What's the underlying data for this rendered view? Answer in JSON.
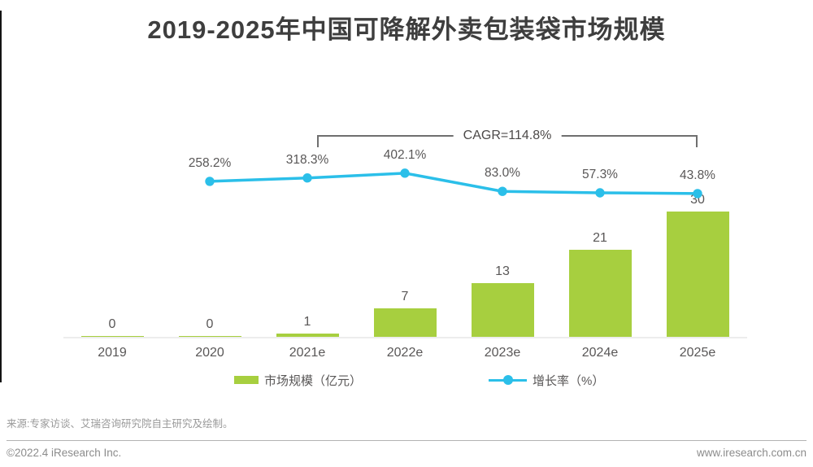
{
  "page": {
    "title": "2019-2025年中国可降解外卖包装袋市场规模",
    "source_note": "来源:专家访谈、艾瑞咨询研究院自主研究及绘制。",
    "footer_left": "©2022.4 iResearch Inc.",
    "footer_right": "www.iresearch.com.cn"
  },
  "chart_data": {
    "type": "bar",
    "title": "2019-2025年中国可降解外卖包装袋市场规模",
    "categories": [
      "2019",
      "2020",
      "2021e",
      "2022e",
      "2023e",
      "2024e",
      "2025e"
    ],
    "series": [
      {
        "name": "市场规模（亿元）",
        "type": "bar",
        "values": [
          0,
          0,
          1,
          7,
          13,
          21,
          30
        ],
        "labels": [
          "0",
          "0",
          "1",
          "7",
          "13",
          "21",
          "30"
        ],
        "color": "#a7cf3f"
      },
      {
        "name": "增长率（%）",
        "type": "line",
        "values": [
          null,
          258.2,
          318.3,
          402.1,
          83.0,
          57.3,
          43.8
        ],
        "labels": [
          "",
          "258.2%",
          "318.3%",
          "402.1%",
          "83.0%",
          "57.3%",
          "43.8%"
        ],
        "color": "#2bbfe9"
      }
    ],
    "annotation": {
      "text": "CAGR=114.8%"
    },
    "xlabel": "",
    "ylabel": "",
    "ylim_bar": [
      0,
      30
    ],
    "grid": false,
    "legend_position": "bottom"
  },
  "legend": {
    "items": [
      {
        "label": "市场规模（亿元）",
        "type": "bar",
        "color": "#a7cf3f"
      },
      {
        "label": "增长率（%）",
        "type": "line",
        "color": "#2bbfe9"
      }
    ]
  },
  "colors": {
    "bar": "#a7cf3f",
    "line": "#2bbfe9",
    "title": "#3e3e3e",
    "labels": "#595757",
    "axis_line": "#ededed",
    "bracket": "#6f6f6f"
  }
}
